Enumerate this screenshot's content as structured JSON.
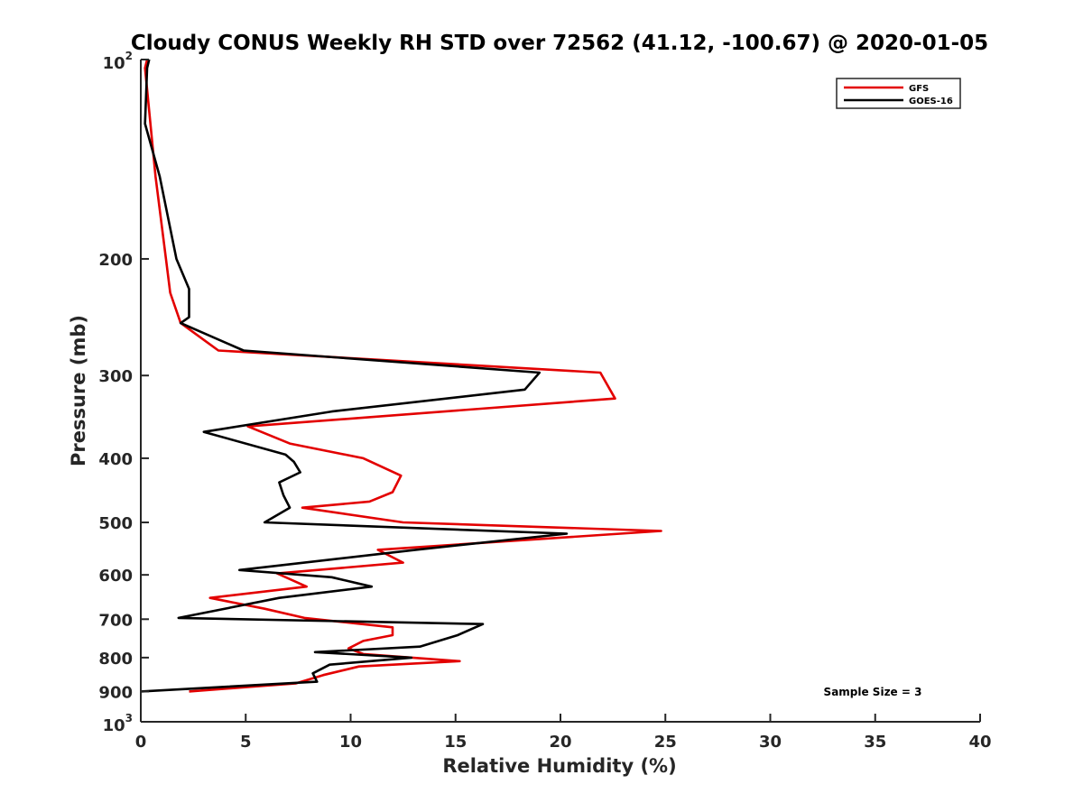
{
  "chart_data": {
    "type": "line",
    "title": "Cloudy CONUS Weekly RH STD over 72562 (41.12, -100.67) @ 2020-01-05",
    "xlabel": "Relative Humidity (%)",
    "ylabel": "Pressure (mb)",
    "xlim": [
      0,
      40
    ],
    "ylim": [
      100,
      1000
    ],
    "y_scale": "log",
    "y_reversed": true,
    "grid": false,
    "legend_position": "top-right",
    "x_ticks": [
      "0",
      "5",
      "10",
      "15",
      "20",
      "25",
      "30",
      "35",
      "40"
    ],
    "y_ticks": [
      {
        "value": 100,
        "base": "10",
        "exp": "2"
      },
      {
        "value": 200,
        "label": "200"
      },
      {
        "value": 300,
        "label": "300"
      },
      {
        "value": 400,
        "label": "400"
      },
      {
        "value": 500,
        "label": "500"
      },
      {
        "value": 600,
        "label": "600"
      },
      {
        "value": 700,
        "label": "700"
      },
      {
        "value": 800,
        "label": "800"
      },
      {
        "value": 900,
        "label": "900"
      },
      {
        "value": 1000,
        "base": "10",
        "exp": "3"
      }
    ],
    "annotation": "Sample Size = 3",
    "series": [
      {
        "name": "GFS",
        "color": "#e30000",
        "points": [
          [
            0.3,
            100
          ],
          [
            0.2,
            103
          ],
          [
            0.7,
            150
          ],
          [
            1.2,
            200
          ],
          [
            1.4,
            225
          ],
          [
            1.9,
            250
          ],
          [
            3.7,
            275
          ],
          [
            21.9,
            297
          ],
          [
            22.6,
            325
          ],
          [
            5.1,
            358
          ],
          [
            7.1,
            380
          ],
          [
            10.6,
            400
          ],
          [
            12.4,
            425
          ],
          [
            12.0,
            450
          ],
          [
            10.9,
            465
          ],
          [
            7.7,
            475
          ],
          [
            12.5,
            500
          ],
          [
            24.8,
            515
          ],
          [
            11.3,
            550
          ],
          [
            12.5,
            575
          ],
          [
            6.5,
            597
          ],
          [
            7.9,
            625
          ],
          [
            3.3,
            650
          ],
          [
            5.9,
            675
          ],
          [
            7.8,
            697
          ],
          [
            12.0,
            720
          ],
          [
            12.0,
            740
          ],
          [
            10.6,
            755
          ],
          [
            9.9,
            775
          ],
          [
            10.6,
            790
          ],
          [
            15.2,
            810
          ],
          [
            10.4,
            825
          ],
          [
            8.7,
            850
          ],
          [
            7.4,
            875
          ],
          [
            2.3,
            900
          ]
        ]
      },
      {
        "name": "GOES-16",
        "color": "#000000",
        "points": [
          [
            0.4,
            100
          ],
          [
            0.3,
            103
          ],
          [
            0.2,
            125
          ],
          [
            0.9,
            150
          ],
          [
            1.7,
            200
          ],
          [
            2.3,
            222
          ],
          [
            2.3,
            245
          ],
          [
            1.9,
            250
          ],
          [
            4.9,
            275
          ],
          [
            19.0,
            297
          ],
          [
            18.3,
            315
          ],
          [
            9.1,
            340
          ],
          [
            3.0,
            365
          ],
          [
            6.9,
            395
          ],
          [
            7.3,
            405
          ],
          [
            7.6,
            420
          ],
          [
            6.6,
            435
          ],
          [
            6.8,
            455
          ],
          [
            7.1,
            475
          ],
          [
            5.9,
            500
          ],
          [
            20.3,
            520
          ],
          [
            13.1,
            550
          ],
          [
            4.7,
            590
          ],
          [
            9.1,
            605
          ],
          [
            11.0,
            625
          ],
          [
            6.6,
            650
          ],
          [
            1.8,
            697
          ],
          [
            16.3,
            712
          ],
          [
            15.1,
            740
          ],
          [
            13.3,
            770
          ],
          [
            8.3,
            785
          ],
          [
            12.9,
            800
          ],
          [
            9.0,
            820
          ],
          [
            8.2,
            845
          ],
          [
            8.4,
            870
          ],
          [
            0.0,
            900
          ]
        ]
      }
    ]
  }
}
